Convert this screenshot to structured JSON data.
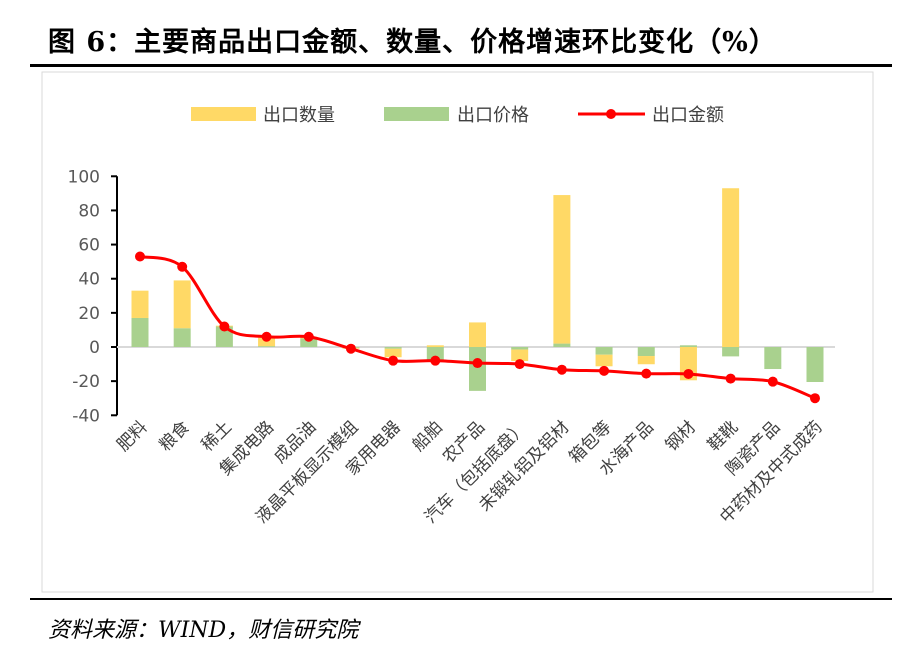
{
  "title": "图 6：主要商品出口金额、数量、价格增速环比变化（%）",
  "source": "资料来源：WIND，财信研究院",
  "chart_data": {
    "type": "bar",
    "stacked": true,
    "title": "",
    "xlabel": "",
    "ylabel": "",
    "ylim": [
      -40,
      100
    ],
    "yticks": [
      100,
      80,
      60,
      40,
      20,
      0,
      -20,
      -40
    ],
    "grid": false,
    "legend_position": "top",
    "categories": [
      "肥料",
      "粮食",
      "稀土",
      "集成电路",
      "成品油",
      "液晶平板显示模组",
      "家用电器",
      "船舶",
      "农产品",
      "汽车（包括底盘）",
      "未锻轧铝及铝材",
      "箱包等",
      "水海产品",
      "钢材",
      "鞋靴",
      "陶瓷产品",
      "中药材及中式成药"
    ],
    "series": [
      {
        "name": "出口数量",
        "type": "bar",
        "color": "#FFD966",
        "values": [
          16,
          28,
          0.5,
          5,
          1,
          -0.5,
          -5,
          1,
          14.4,
          -6.7,
          87,
          -6.8,
          -4.8,
          -19.5,
          93,
          0,
          0
        ]
      },
      {
        "name": "出口价格",
        "type": "bar",
        "color": "#A9D18E",
        "values": [
          17,
          11,
          12,
          0.5,
          5,
          -0.5,
          -1,
          -8,
          -25.7,
          -1.5,
          2,
          -4.5,
          -5.3,
          1,
          -5.5,
          -12.9,
          -20.5
        ]
      },
      {
        "name": "出口金额",
        "type": "line",
        "color": "#FF0000",
        "values": [
          53,
          47,
          12,
          6,
          6,
          -1,
          -8,
          -8,
          -9.4,
          -10,
          -13.3,
          -14,
          -15.6,
          -15.8,
          -18.5,
          -20.3,
          -30
        ]
      }
    ]
  }
}
